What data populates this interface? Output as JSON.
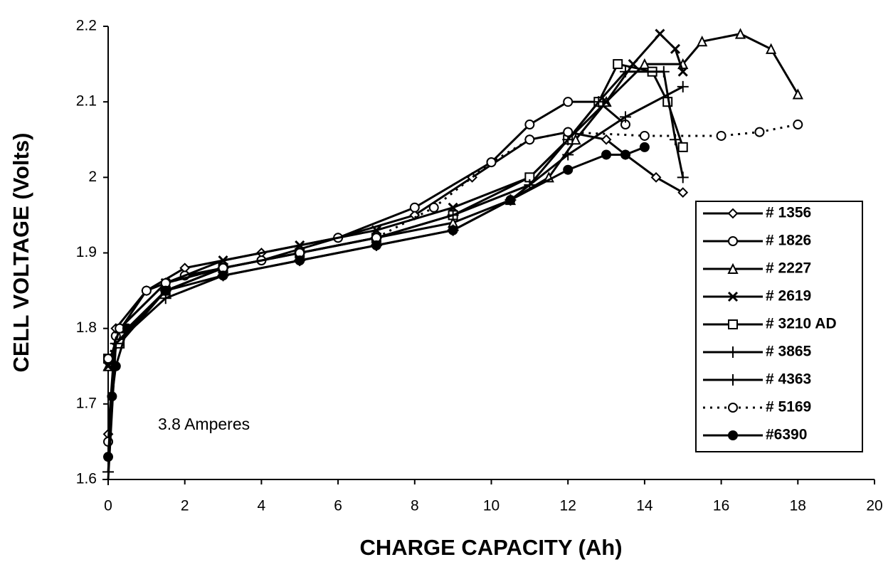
{
  "chart_data": {
    "type": "line",
    "xlabel": "CHARGE CAPACITY (Ah)",
    "ylabel": "CELL VOLTAGE (Volts)",
    "annotation": "3.8 Amperes",
    "xlim": [
      0,
      20
    ],
    "xticks": [
      0,
      2,
      4,
      6,
      8,
      10,
      12,
      14,
      16,
      18,
      20
    ],
    "ylim": [
      1.6,
      2.2
    ],
    "yticks": [
      1.6,
      1.7,
      1.8,
      1.9,
      2,
      2.1,
      2.2
    ],
    "legend": "lower right",
    "series": [
      {
        "name": "# 1356",
        "color": "#000000",
        "marker": "diamond",
        "line_style": "solid",
        "x": [
          0,
          0.2,
          1,
          2,
          4,
          6,
          8,
          9.5,
          11,
          12,
          13,
          13.5,
          14.3,
          15
        ],
        "values": [
          1.66,
          1.8,
          1.85,
          1.88,
          1.9,
          1.92,
          1.95,
          2.0,
          2.05,
          2.06,
          2.05,
          2.03,
          2.0,
          1.98
        ]
      },
      {
        "name": "# 1826",
        "color": "#000000",
        "marker": "circle",
        "line_style": "solid",
        "x": [
          0,
          0.2,
          1,
          2,
          4,
          6,
          8,
          10,
          11,
          12,
          12.8,
          13.5
        ],
        "values": [
          1.65,
          1.79,
          1.85,
          1.87,
          1.89,
          1.92,
          1.96,
          2.02,
          2.07,
          2.1,
          2.1,
          2.07
        ]
      },
      {
        "name": "# 2227",
        "color": "#000000",
        "marker": "triangle",
        "line_style": "solid",
        "x": [
          0,
          0.3,
          1.5,
          3,
          5,
          7,
          9,
          10.5,
          11.5,
          12.2,
          13,
          14,
          15,
          15.5,
          16.5,
          17.3,
          18
        ],
        "values": [
          1.75,
          1.8,
          1.86,
          1.88,
          1.9,
          1.92,
          1.94,
          1.97,
          2.0,
          2.05,
          2.1,
          2.15,
          2.15,
          2.18,
          2.19,
          2.17,
          2.11
        ]
      },
      {
        "name": "# 2619",
        "color": "#000000",
        "marker": "x",
        "line_style": "solid",
        "x": [
          0,
          0.3,
          1.5,
          3,
          5,
          7,
          9,
          11,
          12,
          13,
          13.7,
          14.4,
          14.8,
          15
        ],
        "values": [
          1.75,
          1.8,
          1.86,
          1.89,
          1.91,
          1.93,
          1.96,
          2.0,
          2.05,
          2.1,
          2.15,
          2.19,
          2.17,
          2.14
        ]
      },
      {
        "name": "# 3210 AD",
        "color": "#000000",
        "marker": "square",
        "line_style": "solid",
        "x": [
          0,
          0.3,
          1.5,
          3,
          5,
          7,
          9,
          11,
          12,
          12.8,
          13.3,
          14.2,
          14.6,
          15
        ],
        "values": [
          1.76,
          1.78,
          1.85,
          1.88,
          1.9,
          1.92,
          1.95,
          2.0,
          2.05,
          2.1,
          2.15,
          2.14,
          2.1,
          2.04
        ]
      },
      {
        "name": "# 3865",
        "color": "#000000",
        "marker": "plus",
        "line_style": "solid",
        "x": [
          0,
          0.2,
          1.5,
          3,
          5,
          7,
          9,
          11,
          12,
          12.8,
          13.5,
          14.5,
          14.8,
          15
        ],
        "values": [
          1.61,
          1.78,
          1.85,
          1.88,
          1.9,
          1.92,
          1.95,
          1.99,
          2.05,
          2.1,
          2.14,
          2.14,
          2.05,
          2.0
        ]
      },
      {
        "name": "# 4363",
        "color": "#000000",
        "marker": "plus",
        "line_style": "solid",
        "x": [
          0,
          0.2,
          1.5,
          3,
          5,
          7,
          9,
          10.5,
          12,
          13.5,
          15
        ],
        "values": [
          1.6,
          1.78,
          1.84,
          1.87,
          1.89,
          1.91,
          1.93,
          1.97,
          2.03,
          2.08,
          2.12
        ]
      },
      {
        "name": "# 5169",
        "color": "#000000",
        "marker": "circle",
        "line_style": "dotted",
        "x": [
          0,
          0.3,
          1.5,
          3,
          5,
          7,
          8.5,
          10,
          11,
          12,
          14,
          16,
          17,
          18
        ],
        "values": [
          1.76,
          1.8,
          1.86,
          1.88,
          1.9,
          1.92,
          1.96,
          2.02,
          2.05,
          2.06,
          2.055,
          2.055,
          2.06,
          2.07
        ]
      },
      {
        "name": "#6390",
        "color": "#000000",
        "marker": "dot",
        "line_style": "solid",
        "x": [
          0,
          0.1,
          0.2,
          0.5,
          1.5,
          3,
          5,
          7,
          9,
          10.5,
          12,
          13,
          13.5,
          14
        ],
        "values": [
          1.63,
          1.71,
          1.75,
          1.8,
          1.85,
          1.87,
          1.89,
          1.91,
          1.93,
          1.97,
          2.01,
          2.03,
          2.03,
          2.04
        ]
      }
    ]
  }
}
